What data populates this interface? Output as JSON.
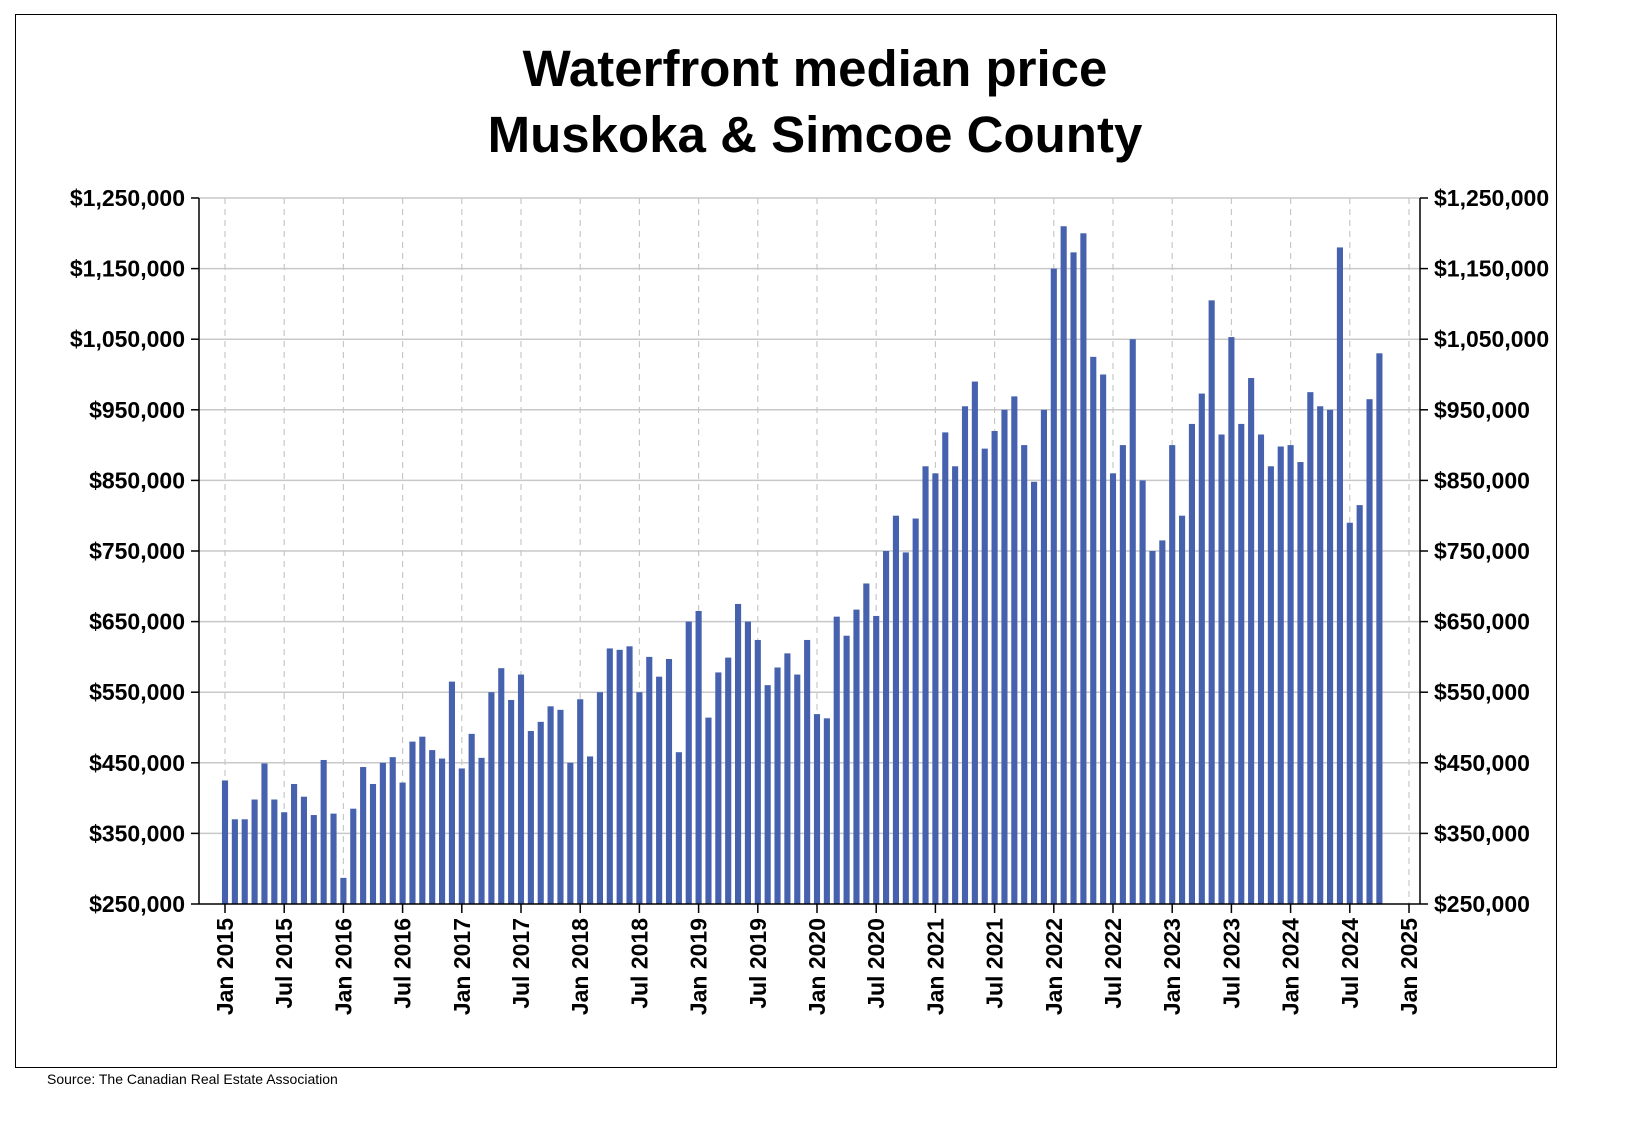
{
  "chart_data": {
    "type": "bar",
    "title": [
      "Waterfront median price",
      "Muskoka & Simcoe County"
    ],
    "source": "Source: The Canadian Real Estate Association",
    "bar_color": "#4661ad",
    "grid": true,
    "ylim": [
      250000,
      1250000
    ],
    "y_ticks": [
      250000,
      350000,
      450000,
      550000,
      650000,
      750000,
      850000,
      950000,
      1050000,
      1150000,
      1250000
    ],
    "y_tick_labels": [
      "$250,000",
      "$350,000",
      "$450,000",
      "$550,000",
      "$650,000",
      "$750,000",
      "$850,000",
      "$950,000",
      "$1,050,000",
      "$1,150,000",
      "$1,250,000"
    ],
    "y_axis_both_sides": true,
    "x_tick_labels": [
      "Jan 2015",
      "Jul 2015",
      "Jan 2016",
      "Jul 2016",
      "Jan 2017",
      "Jul 2017",
      "Jan 2018",
      "Jul 2018",
      "Jan 2019",
      "Jul 2019",
      "Jan 2020",
      "Jul 2020",
      "Jan 2021",
      "Jul 2021",
      "Jan 2022",
      "Jul 2022",
      "Jan 2023",
      "Jul 2023",
      "Jan 2024",
      "Jul 2024",
      "Jan 2025"
    ],
    "x_start": "2015-01",
    "x_end": "2025-01",
    "dates": [
      "2015-01",
      "2015-02",
      "2015-03",
      "2015-04",
      "2015-05",
      "2015-06",
      "2015-07",
      "2015-08",
      "2015-09",
      "2015-10",
      "2015-11",
      "2015-12",
      "2016-01",
      "2016-02",
      "2016-03",
      "2016-04",
      "2016-05",
      "2016-06",
      "2016-07",
      "2016-08",
      "2016-09",
      "2016-10",
      "2016-11",
      "2016-12",
      "2017-01",
      "2017-02",
      "2017-03",
      "2017-04",
      "2017-05",
      "2017-06",
      "2017-07",
      "2017-08",
      "2017-09",
      "2017-10",
      "2017-11",
      "2017-12",
      "2018-01",
      "2018-02",
      "2018-03",
      "2018-04",
      "2018-05",
      "2018-06",
      "2018-07",
      "2018-08",
      "2018-09",
      "2018-10",
      "2018-11",
      "2018-12",
      "2019-01",
      "2019-02",
      "2019-03",
      "2019-04",
      "2019-05",
      "2019-06",
      "2019-07",
      "2019-08",
      "2019-09",
      "2019-10",
      "2019-11",
      "2019-12",
      "2020-01",
      "2020-02",
      "2020-03",
      "2020-04",
      "2020-05",
      "2020-06",
      "2020-07",
      "2020-08",
      "2020-09",
      "2020-10",
      "2020-11",
      "2020-12",
      "2021-01",
      "2021-02",
      "2021-03",
      "2021-04",
      "2021-05",
      "2021-06",
      "2021-07",
      "2021-08",
      "2021-09",
      "2021-10",
      "2021-11",
      "2021-12",
      "2022-01",
      "2022-02",
      "2022-03",
      "2022-04",
      "2022-05",
      "2022-06",
      "2022-07",
      "2022-08",
      "2022-09",
      "2022-10",
      "2022-11",
      "2022-12",
      "2023-01",
      "2023-02",
      "2023-03",
      "2023-04",
      "2023-05",
      "2023-06",
      "2023-07",
      "2023-08",
      "2023-09",
      "2023-10",
      "2023-11",
      "2023-12",
      "2024-01",
      "2024-02",
      "2024-03",
      "2024-04",
      "2024-05",
      "2024-06",
      "2024-07",
      "2024-08",
      "2024-09",
      "2024-10"
    ],
    "values": [
      425000,
      370000,
      370000,
      398000,
      449000,
      398000,
      380000,
      420000,
      402000,
      376000,
      454000,
      378000,
      287000,
      385000,
      444000,
      420000,
      450000,
      458000,
      422000,
      480000,
      487000,
      468000,
      456000,
      565000,
      442000,
      491000,
      457000,
      550000,
      584000,
      539000,
      575000,
      495000,
      508000,
      530000,
      525000,
      450000,
      540000,
      459000,
      550000,
      612000,
      610000,
      615000,
      550000,
      600000,
      572000,
      597000,
      465000,
      650000,
      665000,
      514000,
      578000,
      599000,
      675000,
      650000,
      624000,
      560000,
      585000,
      605000,
      575000,
      624000,
      519000,
      513000,
      657000,
      630000,
      667000,
      704000,
      658000,
      750000,
      800000,
      748000,
      796000,
      870000,
      860000,
      918000,
      870000,
      955000,
      990000,
      895000,
      920000,
      950000,
      969000,
      900000,
      848000,
      950000,
      1150000,
      1210000,
      1173000,
      1200000,
      1025000,
      1000000,
      860000,
      900000,
      1050000,
      850000,
      750000,
      765000,
      900000,
      800000,
      930000,
      973000,
      1105000,
      915000,
      1053000,
      930000,
      995000,
      915000,
      870000,
      898000,
      900000,
      876000,
      975000,
      955000,
      950000,
      1180000,
      790000,
      815000,
      965000,
      1030000
    ]
  }
}
